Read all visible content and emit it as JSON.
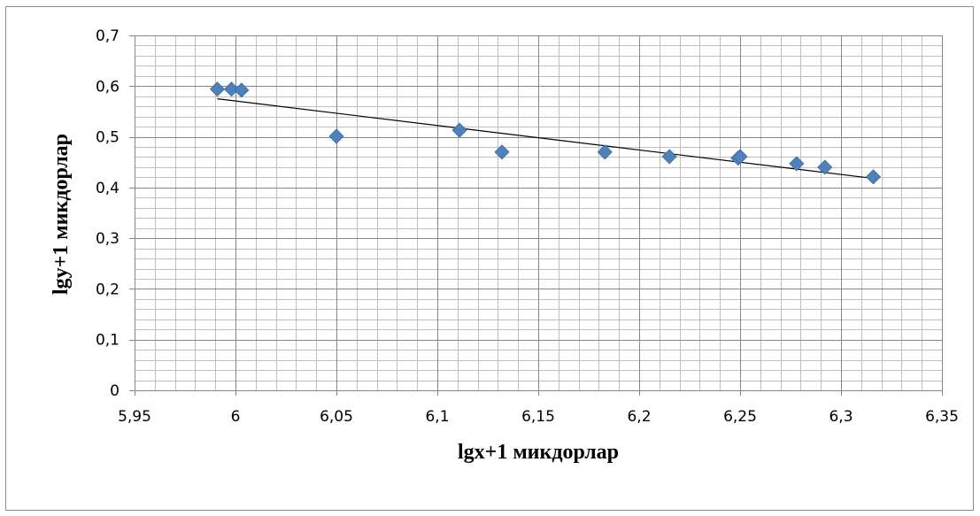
{
  "chart_data": {
    "type": "scatter",
    "title": "",
    "xlabel": "lgx+1 микдорлар",
    "ylabel": "lgy+1 микдорлар",
    "xlim": [
      5.95,
      6.35
    ],
    "ylim": [
      0,
      0.7
    ],
    "x_ticks": [
      5.95,
      6.0,
      6.05,
      6.1,
      6.15,
      6.2,
      6.25,
      6.3,
      6.35
    ],
    "x_tick_labels": [
      "5,95",
      "6",
      "6,05",
      "6,1",
      "6,15",
      "6,2",
      "6,25",
      "6,3",
      "6,35"
    ],
    "y_ticks": [
      0,
      0.1,
      0.2,
      0.3,
      0.4,
      0.5,
      0.6,
      0.7
    ],
    "y_tick_labels": [
      "0",
      "0,1",
      "0,2",
      "0,3",
      "0,4",
      "0,5",
      "0,6",
      "0,7"
    ],
    "grid": true,
    "legend": "none",
    "series": [
      {
        "points": [
          {
            "x": 5.991,
            "y": 0.594
          },
          {
            "x": 5.998,
            "y": 0.594
          },
          {
            "x": 6.003,
            "y": 0.592
          },
          {
            "x": 6.05,
            "y": 0.501
          },
          {
            "x": 6.111,
            "y": 0.513
          },
          {
            "x": 6.132,
            "y": 0.47
          },
          {
            "x": 6.183,
            "y": 0.47
          },
          {
            "x": 6.215,
            "y": 0.461
          },
          {
            "x": 6.249,
            "y": 0.458
          },
          {
            "x": 6.25,
            "y": 0.461
          },
          {
            "x": 6.278,
            "y": 0.447
          },
          {
            "x": 6.292,
            "y": 0.44
          },
          {
            "x": 6.316,
            "y": 0.421
          }
        ],
        "color": "#4f81bd",
        "marker": "diamond"
      }
    ],
    "trendline": {
      "type": "linear",
      "from": {
        "x": 5.991,
        "y": 0.575
      },
      "to": {
        "x": 6.316,
        "y": 0.418
      },
      "color": "#000000"
    },
    "colors": {
      "grid_major": "#868686",
      "grid_minor": "#bfbfbf",
      "axis": "#868686"
    }
  }
}
